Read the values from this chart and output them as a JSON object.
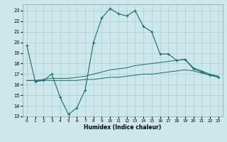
{
  "title": "",
  "xlabel": "Humidex (Indice chaleur)",
  "background_color": "#cce8ea",
  "grid_color": "#aacdd0",
  "line_color": "#1a6b6b",
  "xlim": [
    -0.5,
    23.5
  ],
  "ylim": [
    13,
    23.6
  ],
  "yticks": [
    13,
    14,
    15,
    16,
    17,
    18,
    19,
    20,
    21,
    22,
    23
  ],
  "xticks": [
    0,
    1,
    2,
    3,
    4,
    5,
    6,
    7,
    8,
    9,
    10,
    11,
    12,
    13,
    14,
    15,
    16,
    17,
    18,
    19,
    20,
    21,
    22,
    23
  ],
  "series_main": [
    19.7,
    16.3,
    16.4,
    17.0,
    14.8,
    13.2,
    13.8,
    15.5,
    20.0,
    22.3,
    23.2,
    22.7,
    22.5,
    23.0,
    21.5,
    21.0,
    18.9,
    18.9,
    18.3,
    18.4,
    17.5,
    17.2,
    16.9,
    16.7
  ],
  "series_upper": [
    16.4,
    16.4,
    16.5,
    16.6,
    16.6,
    16.6,
    16.7,
    16.8,
    17.0,
    17.2,
    17.4,
    17.5,
    17.6,
    17.8,
    17.9,
    18.0,
    18.1,
    18.2,
    18.3,
    18.4,
    17.6,
    17.3,
    17.0,
    16.8
  ],
  "series_lower": [
    16.4,
    16.4,
    16.4,
    16.4,
    16.4,
    16.4,
    16.4,
    16.5,
    16.5,
    16.6,
    16.7,
    16.7,
    16.8,
    16.9,
    17.0,
    17.0,
    17.1,
    17.2,
    17.3,
    17.4,
    17.3,
    17.1,
    16.9,
    16.8
  ]
}
